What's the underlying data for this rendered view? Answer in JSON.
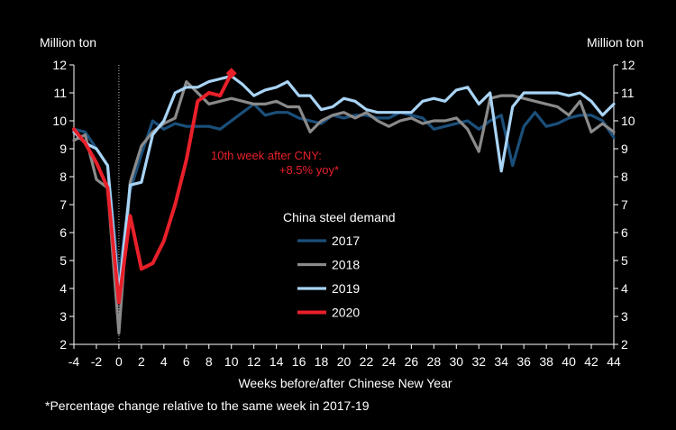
{
  "chart_data": {
    "type": "line",
    "yunit_left": "Million ton",
    "yunit_right": "Million ton",
    "xlabel": "Weeks before/after Chinese New Year",
    "footnote": "*Percentage change relative to the same week in 2017-19",
    "xlim": [
      -4,
      44
    ],
    "ylim": [
      2,
      12
    ],
    "xticks": [
      "-4",
      "-2",
      "0",
      "2",
      "4",
      "6",
      "8",
      "10",
      "12",
      "14",
      "16",
      "18",
      "20",
      "22",
      "24",
      "26",
      "28",
      "30",
      "32",
      "34",
      "36",
      "38",
      "40",
      "42",
      "44"
    ],
    "yticks": [
      "2",
      "3",
      "4",
      "5",
      "6",
      "7",
      "8",
      "9",
      "10",
      "11",
      "12"
    ],
    "legend_title": "China steel demand",
    "legend_placement": "center",
    "annotation": {
      "line1": "10th week after CNY:",
      "line2": "+8.5% yoy*"
    },
    "series": [
      {
        "name": "2017",
        "color": "#1b4f7a",
        "x": [
          -4,
          -3,
          -2,
          -1,
          0,
          1,
          2,
          3,
          4,
          5,
          6,
          7,
          8,
          9,
          10,
          11,
          12,
          13,
          14,
          15,
          16,
          17,
          18,
          19,
          20,
          21,
          22,
          23,
          24,
          25,
          26,
          27,
          28,
          29,
          30,
          31,
          32,
          33,
          34,
          35,
          36,
          37,
          38,
          39,
          40,
          41,
          42,
          43,
          44
        ],
        "y": [
          9.7,
          9.6,
          9.0,
          8.4,
          4.4,
          7.5,
          8.8,
          10.0,
          9.7,
          9.9,
          9.8,
          9.8,
          9.8,
          9.7,
          10.0,
          10.3,
          10.6,
          10.2,
          10.3,
          10.3,
          10.1,
          10.0,
          9.9,
          10.2,
          10.1,
          10.2,
          10.2,
          10.1,
          10.1,
          10.3,
          10.2,
          10.1,
          9.7,
          9.8,
          9.9,
          10.0,
          9.7,
          10.0,
          10.2,
          8.4,
          9.8,
          10.3,
          9.8,
          9.9,
          10.1,
          10.2,
          10.2,
          10.0,
          9.4
        ]
      },
      {
        "name": "2018",
        "color": "#8a8a8a",
        "x": [
          -4,
          -3,
          -2,
          -1,
          0,
          1,
          2,
          3,
          4,
          5,
          6,
          7,
          8,
          9,
          10,
          11,
          12,
          13,
          14,
          15,
          16,
          17,
          18,
          19,
          20,
          21,
          22,
          23,
          24,
          25,
          26,
          27,
          28,
          29,
          30,
          31,
          32,
          33,
          34,
          35,
          36,
          37,
          38,
          39,
          40,
          41,
          42,
          43,
          44
        ],
        "y": [
          9.3,
          9.5,
          7.9,
          7.6,
          2.4,
          7.8,
          9.1,
          9.6,
          9.9,
          10.1,
          11.4,
          11.0,
          10.6,
          10.7,
          10.8,
          10.7,
          10.6,
          10.6,
          10.7,
          10.5,
          10.5,
          9.6,
          10.0,
          10.2,
          10.3,
          10.1,
          10.3,
          10.0,
          9.8,
          10.0,
          10.1,
          9.9,
          10.0,
          10.0,
          10.1,
          9.7,
          8.9,
          10.8,
          10.9,
          10.9,
          10.8,
          10.7,
          10.6,
          10.5,
          10.2,
          10.7,
          9.6,
          9.9,
          9.6
        ]
      },
      {
        "name": "2019",
        "color": "#a9d4f5",
        "x": [
          -4,
          -3,
          -2,
          -1,
          0,
          1,
          2,
          3,
          4,
          5,
          6,
          7,
          8,
          9,
          10,
          11,
          12,
          13,
          14,
          15,
          16,
          17,
          18,
          19,
          20,
          21,
          22,
          23,
          24,
          25,
          26,
          27,
          28,
          29,
          30,
          31,
          32,
          33,
          34,
          35,
          36,
          37,
          38,
          39,
          40,
          41,
          42,
          43,
          44
        ],
        "y": [
          9.6,
          9.2,
          9.0,
          8.4,
          3.8,
          7.7,
          7.8,
          9.5,
          10.0,
          11.0,
          11.2,
          11.2,
          11.4,
          11.5,
          11.6,
          11.3,
          10.9,
          11.1,
          11.2,
          11.4,
          10.9,
          10.9,
          10.4,
          10.5,
          10.8,
          10.7,
          10.4,
          10.3,
          10.3,
          10.3,
          10.3,
          10.7,
          10.8,
          10.7,
          11.1,
          11.2,
          10.6,
          11.0,
          8.2,
          10.5,
          11.0,
          11.0,
          11.0,
          11.0,
          10.9,
          11.0,
          10.7,
          10.2,
          10.6
        ]
      },
      {
        "name": "2020",
        "color": "#e8202a",
        "x": [
          -4,
          -3,
          -2,
          -1,
          0,
          1,
          2,
          3,
          4,
          5,
          6,
          7,
          8,
          9,
          10
        ],
        "y": [
          9.7,
          9.2,
          8.5,
          7.6,
          3.5,
          6.6,
          4.7,
          4.9,
          5.7,
          7.0,
          8.6,
          10.7,
          11.0,
          10.9,
          11.7
        ]
      }
    ]
  }
}
